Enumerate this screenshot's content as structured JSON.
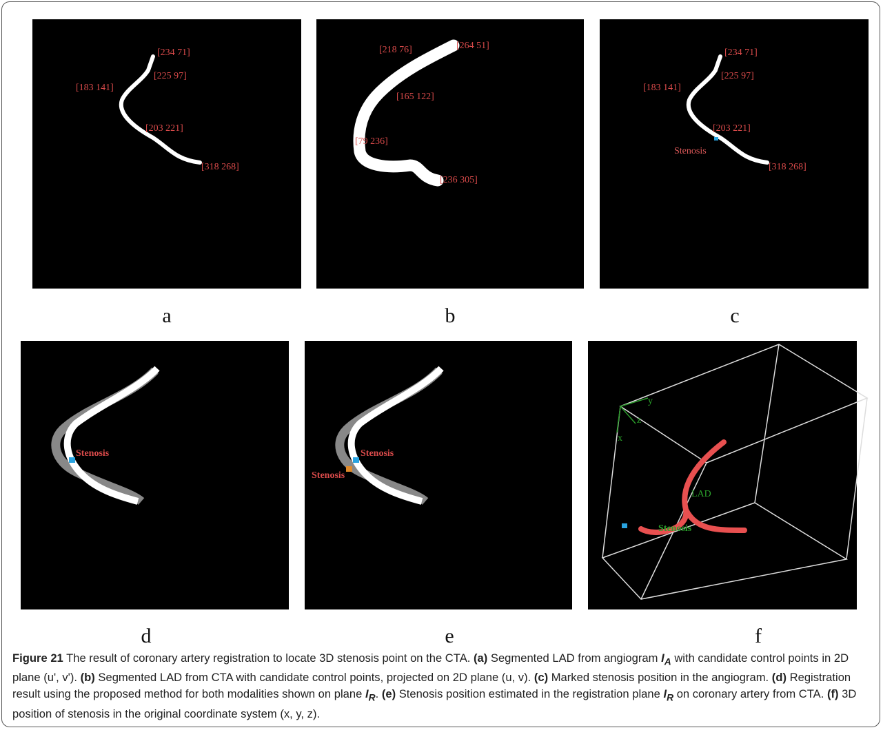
{
  "panels": [
    {
      "label": "a",
      "annotations": [
        "[234 71]",
        "[225 97]",
        "[183 141]",
        "[203 221]",
        "[318 268]"
      ]
    },
    {
      "label": "b",
      "annotations": [
        "[218 76]",
        "[264 51]",
        "[165 122]",
        "[79 236]",
        "[236 305]"
      ]
    },
    {
      "label": "c",
      "annotations": [
        "[234 71]",
        "[225 97]",
        "[183 141]",
        "[203 221]",
        "Stenosis",
        "[318 268]"
      ]
    },
    {
      "label": "d",
      "annotations": [
        "Stenosis"
      ]
    },
    {
      "label": "e",
      "annotations": [
        "Stenosis",
        "Stenosis"
      ]
    },
    {
      "label": "f",
      "annotations": [
        "x",
        "y",
        "z",
        "LAD",
        "Stenosis"
      ]
    }
  ],
  "caption": [
    "Figure 21",
    " The result of coronary artery registration to locate 3D stenosis point on the CTA. ",
    "(a)",
    " Segmented LAD from angiogram ",
    "I",
    "A",
    " with candidate control points in 2D plane (u', v'). ",
    "(b)",
    " Segmented LAD from CTA with candidate control points, projected on 2D plane (u, v). ",
    "(c)",
    " Marked stenosis position in the angiogram. ",
    "(d)",
    " Registration result using the proposed method for both modalities shown on plane ",
    "I",
    "R",
    ". ",
    "(e)",
    " Stenosis position estimated in the registration plane ",
    "I",
    "R",
    " on coronary artery from CTA. ",
    "(f)",
    " 3D position of stenosis in the original coordinate system (x, y, z)."
  ]
}
